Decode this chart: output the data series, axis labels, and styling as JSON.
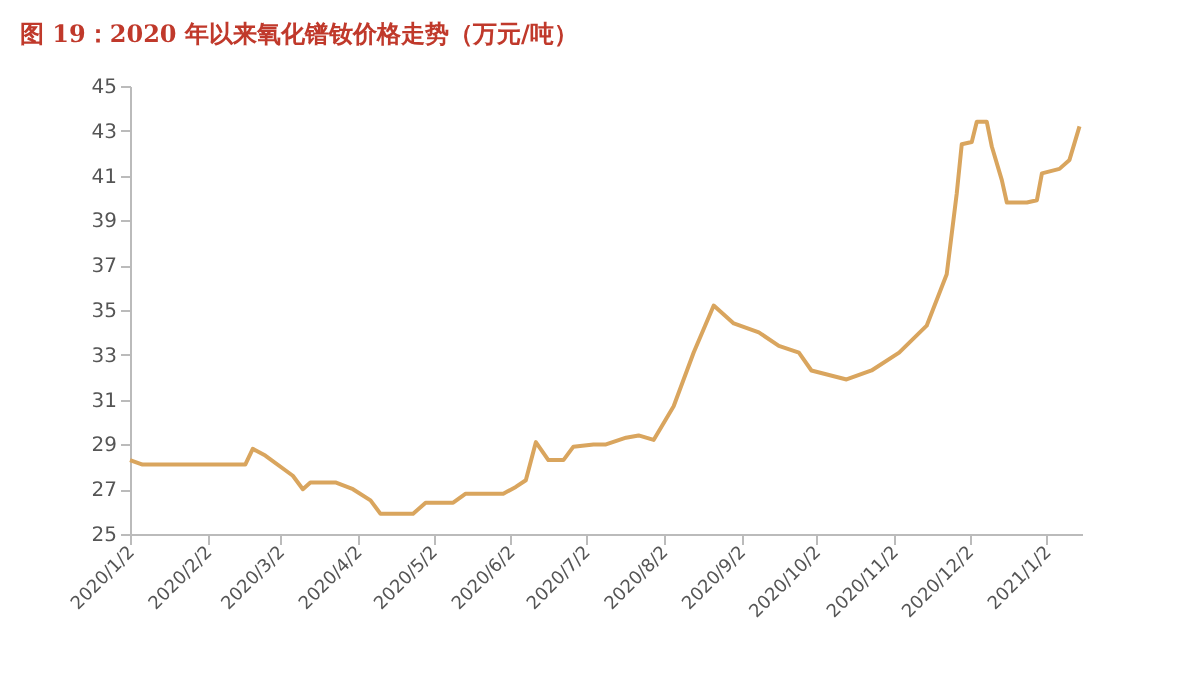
{
  "chart_data": {
    "type": "line",
    "title": "图 19：2020 年以来氧化镨钕价格走势（万元/吨）",
    "x": [
      "2020-01-02",
      "2020-01-07",
      "2020-02-17",
      "2020-02-20",
      "2020-02-25",
      "2020-03-07",
      "2020-03-11",
      "2020-03-14",
      "2020-03-24",
      "2020-03-31",
      "2020-04-07",
      "2020-04-11",
      "2020-04-24",
      "2020-04-29",
      "2020-05-10",
      "2020-05-15",
      "2020-05-22",
      "2020-05-30",
      "2020-06-04",
      "2020-06-08",
      "2020-06-12",
      "2020-06-17",
      "2020-06-23",
      "2020-06-27",
      "2020-07-05",
      "2020-07-10",
      "2020-07-18",
      "2020-07-23",
      "2020-07-29",
      "2020-08-06",
      "2020-08-14",
      "2020-08-22",
      "2020-08-30",
      "2020-09-09",
      "2020-09-17",
      "2020-09-25",
      "2020-09-30",
      "2020-10-14",
      "2020-10-24",
      "2020-11-04",
      "2020-11-15",
      "2020-11-23",
      "2020-11-27",
      "2020-11-29",
      "2020-12-03",
      "2020-12-05",
      "2020-12-09",
      "2020-12-11",
      "2020-12-15",
      "2020-12-17",
      "2020-12-25",
      "2020-12-29",
      "2020-12-31",
      "2021-01-07",
      "2021-01-11",
      "2021-01-15"
    ],
    "series": [
      {
        "color": "#d9a55e",
        "values": [
          28.3,
          28.1,
          28.1,
          28.8,
          28.5,
          27.6,
          27.0,
          27.3,
          27.3,
          27.0,
          26.5,
          25.9,
          25.9,
          26.4,
          26.4,
          26.8,
          26.8,
          26.8,
          27.1,
          27.4,
          29.1,
          28.3,
          28.3,
          28.9,
          29.0,
          29.0,
          29.3,
          29.4,
          29.2,
          30.7,
          33.1,
          35.2,
          34.4,
          34.0,
          33.4,
          33.1,
          32.3,
          31.9,
          32.3,
          33.1,
          34.3,
          36.6,
          40.2,
          42.4,
          42.5,
          43.4,
          43.4,
          42.3,
          40.8,
          39.8,
          39.8,
          39.9,
          41.1,
          41.3,
          41.7,
          43.2
        ]
      }
    ],
    "xlim": [
      "2020-01-02",
      "2021-01-16"
    ],
    "xticks": [
      {
        "value": "2020-01-02",
        "label": "2020/1/2"
      },
      {
        "value": "2020-02-02",
        "label": "2020/2/2"
      },
      {
        "value": "2020-03-02",
        "label": "2020/3/2"
      },
      {
        "value": "2020-04-02",
        "label": "2020/4/2"
      },
      {
        "value": "2020-05-02",
        "label": "2020/5/2"
      },
      {
        "value": "2020-06-02",
        "label": "2020/6/2"
      },
      {
        "value": "2020-07-02",
        "label": "2020/7/2"
      },
      {
        "value": "2020-08-02",
        "label": "2020/8/2"
      },
      {
        "value": "2020-09-02",
        "label": "2020/9/2"
      },
      {
        "value": "2020-10-02",
        "label": "2020/10/2"
      },
      {
        "value": "2020-11-02",
        "label": "2020/11/2"
      },
      {
        "value": "2020-12-02",
        "label": "2020/12/2"
      },
      {
        "value": "2021-01-02",
        "label": "2021/1/2"
      }
    ],
    "ylim": [
      25,
      45
    ],
    "yticks": [
      25,
      27,
      29,
      31,
      33,
      35,
      37,
      39,
      41,
      43,
      45
    ],
    "grid": false,
    "legend": false,
    "marker": "none",
    "line_style": "solid"
  }
}
